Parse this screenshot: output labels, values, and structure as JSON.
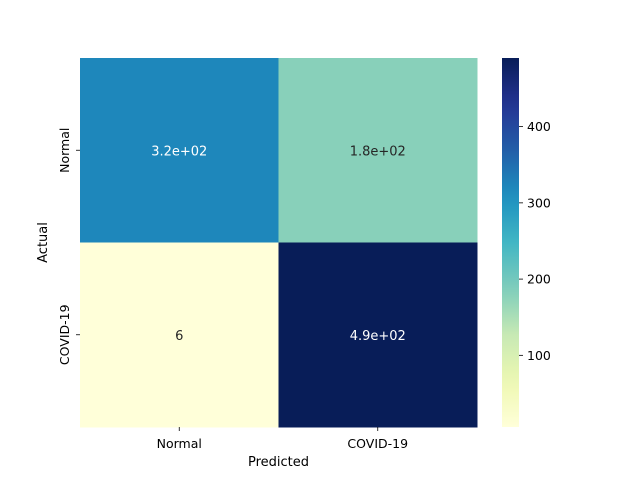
{
  "chart_data": {
    "type": "heatmap",
    "title": "",
    "xlabel": "Predicted",
    "ylabel": "Actual",
    "x_categories": [
      "Normal",
      "COVID-19"
    ],
    "y_categories": [
      "Normal",
      "COVID-19"
    ],
    "matrix": [
      [
        320,
        180
      ],
      [
        6,
        490
      ]
    ],
    "annotations": [
      [
        "3.2e+02",
        "1.8e+02"
      ],
      [
        "6",
        "4.9e+02"
      ]
    ],
    "colormap": "YlGnBu",
    "colorbar": {
      "range": [
        6,
        490
      ],
      "ticks": [
        100,
        200,
        300,
        400
      ]
    },
    "grid": false,
    "legend": "colorbar-right"
  }
}
